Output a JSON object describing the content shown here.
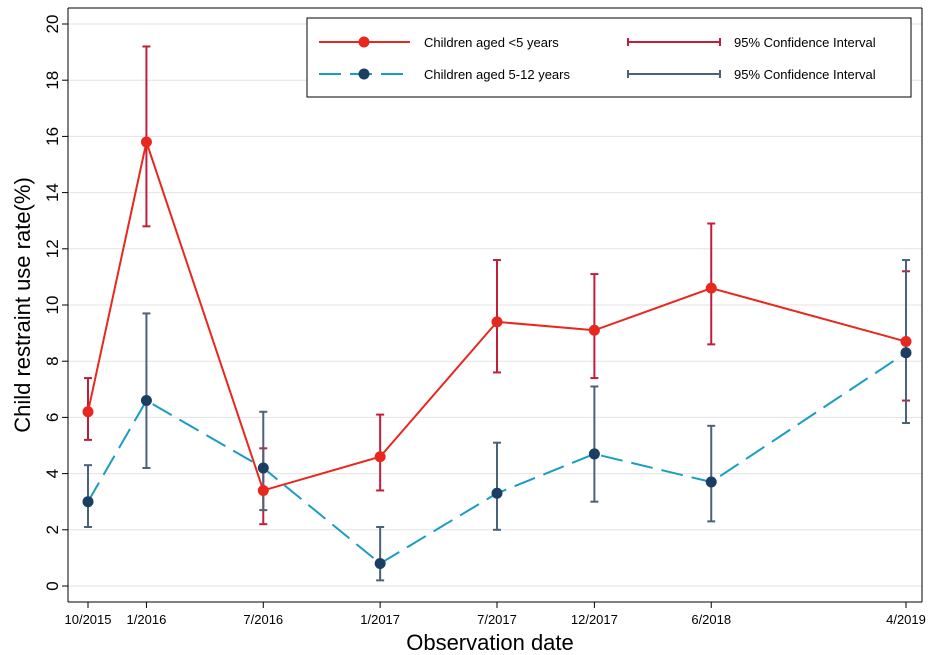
{
  "chart_data": {
    "type": "line",
    "xlabel": "Observation date",
    "ylabel": "Child restraint use rate(%)",
    "ylim": [
      0,
      20
    ],
    "yticks": [
      0,
      2,
      4,
      6,
      8,
      10,
      12,
      14,
      16,
      18,
      20
    ],
    "categories": [
      "10/2015",
      "1/2016",
      "7/2016",
      "1/2017",
      "7/2017",
      "12/2017",
      "6/2018",
      "4/2019"
    ],
    "x_months": [
      0,
      3,
      9,
      15,
      21,
      26,
      32,
      42
    ],
    "grid": true,
    "legend_position": "top-right",
    "series": [
      {
        "name": "Children aged <5 years",
        "ci_name": "95% Confidence Interval",
        "color": "#e8281f",
        "ci_color": "#c01e3c",
        "line_style": "solid",
        "values": [
          6.2,
          15.8,
          3.4,
          4.6,
          9.4,
          9.1,
          10.6,
          8.7
        ],
        "ci_low": [
          5.2,
          12.8,
          2.2,
          3.4,
          7.6,
          7.4,
          8.6,
          6.6
        ],
        "ci_high": [
          7.4,
          19.2,
          4.9,
          6.1,
          11.6,
          11.1,
          12.9,
          11.2
        ]
      },
      {
        "name": "Children aged 5-12 years",
        "ci_name": "95% Confidence Interval",
        "color": "#1a9cc4",
        "marker_color": "#1b3f63",
        "ci_color": "#4b6278",
        "line_style": "dashed",
        "values": [
          3.0,
          6.6,
          4.2,
          0.8,
          3.3,
          4.7,
          3.7,
          8.3
        ],
        "ci_low": [
          2.1,
          4.2,
          2.7,
          0.2,
          2.0,
          3.0,
          2.3,
          5.8
        ],
        "ci_high": [
          4.3,
          9.7,
          6.2,
          2.1,
          5.1,
          7.1,
          5.7,
          11.6
        ]
      }
    ]
  }
}
